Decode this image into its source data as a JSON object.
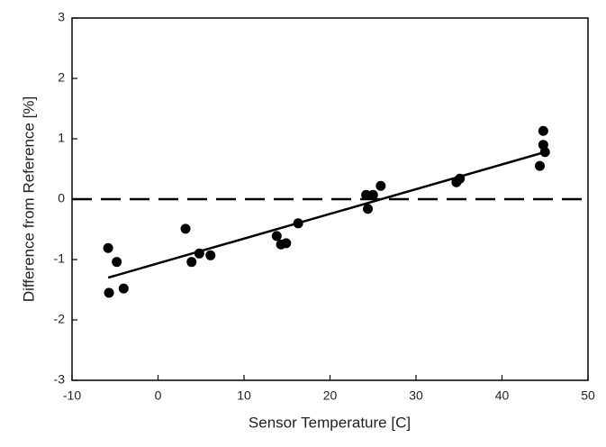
{
  "chart_data": {
    "type": "scatter",
    "xlabel": "Sensor Temperature [C]",
    "ylabel": "Difference from Reference [%]",
    "x": [
      -5.8,
      -5.7,
      -4.8,
      -4.0,
      3.2,
      3.9,
      4.8,
      6.1,
      13.8,
      14.3,
      14.9,
      16.3,
      24.2,
      24.4,
      25.0,
      25.9,
      34.7,
      35.1,
      44.4,
      44.8,
      44.8,
      45.0
    ],
    "y": [
      -0.81,
      -1.55,
      -1.04,
      -1.48,
      -0.49,
      -1.04,
      -0.9,
      -0.93,
      -0.61,
      -0.75,
      -0.73,
      -0.4,
      0.07,
      -0.16,
      0.07,
      0.22,
      0.28,
      0.34,
      0.55,
      1.13,
      0.9,
      0.78
    ],
    "color": "#000000",
    "fit": {
      "x": [
        -5.8,
        45
      ],
      "y": [
        -1.3,
        0.78
      ]
    },
    "reference_y": 0,
    "xlim": [
      -10,
      50
    ],
    "xticks": [
      -10,
      0,
      10,
      20,
      30,
      40,
      50
    ],
    "ylim": [
      -3,
      3
    ],
    "yticks": [
      -3,
      -2,
      -1,
      0,
      1,
      2,
      3
    ]
  }
}
